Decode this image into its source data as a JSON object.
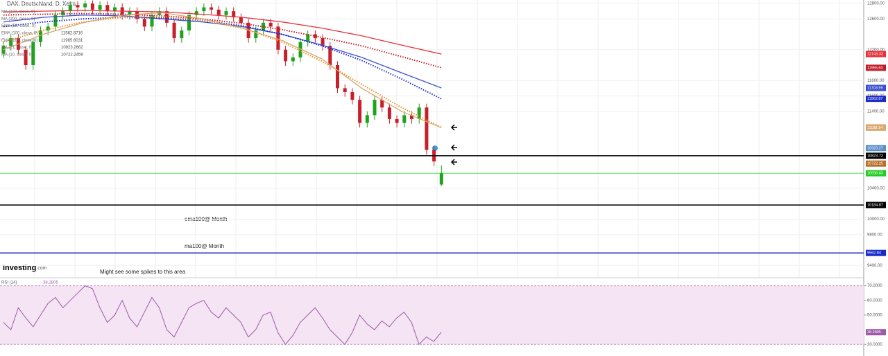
{
  "chart_data": {
    "type": "candlestick",
    "title": "DAX, Deutschland, D, Xetra",
    "ylim": [
      9250,
      12845
    ],
    "yticks": [
      {
        "value": 12800,
        "label": "12800.00"
      },
      {
        "value": 12600,
        "label": "12600.00"
      },
      {
        "value": 12200,
        "label": "12200.00"
      },
      {
        "value": 11800,
        "label": "11800.00"
      },
      {
        "value": 11600,
        "label": "11600.00"
      },
      {
        "value": 11400,
        "label": "11400.00"
      },
      {
        "value": 10400,
        "label": "10400.00"
      },
      {
        "value": 10000,
        "label": "10000.00"
      },
      {
        "value": 9800,
        "label": "9800.00"
      },
      {
        "value": 9400,
        "label": "9400.00"
      }
    ],
    "up_color": "#1fa31f",
    "down_color": "#c8202a",
    "ohlc": [
      [
        12150,
        12300,
        12090,
        12250
      ],
      [
        12250,
        12400,
        12190,
        12350
      ],
      [
        12350,
        12400,
        12140,
        12200
      ],
      [
        12200,
        12250,
        11940,
        12000
      ],
      [
        12000,
        12350,
        11940,
        12300
      ],
      [
        12300,
        12500,
        12240,
        12450
      ],
      [
        12450,
        12550,
        12390,
        12500
      ],
      [
        12500,
        12700,
        12440,
        12650
      ],
      [
        12650,
        12750,
        12590,
        12700
      ],
      [
        12700,
        12830,
        12640,
        12780
      ],
      [
        12780,
        12830,
        12690,
        12750
      ],
      [
        12750,
        12840,
        12690,
        12800
      ],
      [
        12800,
        12840,
        12660,
        12720
      ],
      [
        12720,
        12830,
        12660,
        12780
      ],
      [
        12780,
        12830,
        12640,
        12700
      ],
      [
        12700,
        12800,
        12640,
        12750
      ],
      [
        12750,
        12800,
        12590,
        12650
      ],
      [
        12650,
        12750,
        12590,
        12700
      ],
      [
        12700,
        12750,
        12540,
        12600
      ],
      [
        12600,
        12650,
        12440,
        12500
      ],
      [
        12500,
        12700,
        12440,
        12650
      ],
      [
        12650,
        12750,
        12590,
        12700
      ],
      [
        12700,
        12750,
        12490,
        12550
      ],
      [
        12550,
        12600,
        12290,
        12350
      ],
      [
        12350,
        12500,
        12290,
        12450
      ],
      [
        12450,
        12700,
        12390,
        12650
      ],
      [
        12650,
        12750,
        12590,
        12700
      ],
      [
        12700,
        12800,
        12640,
        12750
      ],
      [
        12750,
        12800,
        12660,
        12720
      ],
      [
        12720,
        12770,
        12590,
        12650
      ],
      [
        12650,
        12750,
        12590,
        12700
      ],
      [
        12700,
        12750,
        12560,
        12620
      ],
      [
        12620,
        12670,
        12490,
        12550
      ],
      [
        12550,
        12600,
        12290,
        12350
      ],
      [
        12350,
        12500,
        12290,
        12450
      ],
      [
        12450,
        12600,
        12390,
        12550
      ],
      [
        12550,
        12600,
        12440,
        12500
      ],
      [
        12500,
        12550,
        12140,
        12200
      ],
      [
        12200,
        12250,
        11990,
        12050
      ],
      [
        12050,
        12150,
        11990,
        12100
      ],
      [
        12100,
        12350,
        12040,
        12300
      ],
      [
        12300,
        12450,
        12240,
        12400
      ],
      [
        12400,
        12450,
        12290,
        12350
      ],
      [
        12350,
        12400,
        12190,
        12250
      ],
      [
        12250,
        12300,
        11940,
        12000
      ],
      [
        12000,
        12050,
        11640,
        11700
      ],
      [
        11700,
        11750,
        11590,
        11650
      ],
      [
        11650,
        11700,
        11490,
        11550
      ],
      [
        11550,
        11600,
        11190,
        11250
      ],
      [
        11250,
        11400,
        11190,
        11350
      ],
      [
        11350,
        11600,
        11290,
        11550
      ],
      [
        11550,
        11600,
        11390,
        11450
      ],
      [
        11450,
        11500,
        11240,
        11300
      ],
      [
        11300,
        11350,
        11190,
        11250
      ],
      [
        11250,
        11400,
        11190,
        11350
      ],
      [
        11350,
        11400,
        11240,
        11300
      ],
      [
        11300,
        11500,
        11240,
        11450
      ],
      [
        11450,
        11500,
        10840,
        10900
      ],
      [
        10900,
        10950,
        10690,
        10750
      ],
      [
        10450,
        10700,
        10430.03,
        10596.83
      ]
    ],
    "series": [
      {
        "name": "MA (200, close, 0)",
        "color": "#e8303a",
        "dotted": false,
        "values": [
          12690,
          12700,
          12710,
          12700,
          12690,
          12660,
          12620,
          12560,
          12480,
          12380,
          12260,
          12143.33
        ]
      },
      {
        "name": "EMA (200, close, 0)",
        "color": "#c0202a",
        "dotted": true,
        "values": [
          12650,
          12660,
          12670,
          12660,
          12640,
          12600,
          12540,
          12460,
          12360,
          12250,
          12110,
          11965.6
        ]
      },
      {
        "name": "MA (100, close, 0)",
        "color": "#3a4fd0",
        "dotted": false,
        "values": [
          12560,
          12620,
          12650,
          12640,
          12600,
          12560,
          12500,
          12400,
          12260,
          12100,
          11900,
          11703.99
        ]
      },
      {
        "name": "EMA (100, close, 0)",
        "color": "#1a2ac8",
        "dotted": true,
        "values": [
          12500,
          12560,
          12600,
          12620,
          12610,
          12580,
          12510,
          12400,
          12250,
          12060,
          11820,
          11562.87
        ]
      },
      {
        "name": "EMA (50, close, 0)",
        "color": "#f09020",
        "dotted": true,
        "values": [
          12300,
          12450,
          12560,
          12620,
          12630,
          12580,
          12480,
          12300,
          12050,
          11750,
          11450,
          11191.27
        ]
      },
      {
        "name": "MA (50, close, 0)",
        "color": "#d8a870",
        "dotted": false,
        "values": [
          12200,
          12400,
          12550,
          12650,
          12680,
          12600,
          12480,
          12320,
          12080,
          11700,
          11400,
          11188.14
        ]
      }
    ],
    "legend": [
      {
        "name": "MA (100, close, 0)"
      },
      {
        "name": "MA (200, close, 0)"
      },
      {
        "name": "EMA (50, close, 0)"
      },
      {
        "name": "EMA (100, close, 0)",
        "value": 11562.8716
      },
      {
        "name": "EMA (200, close, 0)",
        "value": 11965.6031
      },
      {
        "name": "MA (21, close, 0)",
        "value": 10923.2662
      },
      {
        "name": "MA (10, close, 0)",
        "value": 10722.2459
      }
    ],
    "price_labels": [
      {
        "value": 12143.33,
        "color": "#e8303a"
      },
      {
        "value": 11965.6,
        "label": "11965.60",
        "color": "#c0202a"
      },
      {
        "value": 11703.99,
        "color": "#3a4fd0"
      },
      {
        "value": 11562.87,
        "color": "#1a2ac8"
      },
      {
        "value": 11191.27,
        "color": "#f09020"
      },
      {
        "value": 11188.14,
        "color": "#d8a870"
      },
      {
        "value": 10923.27,
        "color": "#5b8fc8"
      },
      {
        "value": 10722.25,
        "color": "#b8702a"
      }
    ],
    "hlines": [
      {
        "value": 10823.72,
        "color": "#000000"
      },
      {
        "value": 10596.83,
        "color": "#22cc22"
      },
      {
        "value": 10184.87,
        "color": "#000000"
      },
      {
        "value": 9562.84,
        "color": "#1a2ac8"
      }
    ],
    "annotations": [
      "ema100@ Month",
      "ma100@ Month",
      "Might see some spikes to this area"
    ],
    "brand": "Investing",
    "brand_suffix": ".com",
    "rsi": {
      "name": "RSI (14)",
      "value": 38.2805,
      "color": "#9c5aa8",
      "ylim": [
        23,
        75
      ],
      "yticks": [
        {
          "value": 70,
          "label": "70.0000"
        },
        {
          "value": 60,
          "label": "60.0000"
        },
        {
          "value": 50,
          "label": "50.0000"
        },
        {
          "value": 30,
          "label": "30.0000"
        }
      ],
      "band": [
        30,
        70
      ],
      "values": [
        45,
        40,
        55,
        48,
        42,
        50,
        58,
        62,
        55,
        60,
        65,
        70,
        68,
        55,
        45,
        50,
        60,
        48,
        42,
        52,
        62,
        55,
        40,
        35,
        45,
        55,
        58,
        60,
        52,
        48,
        55,
        50,
        45,
        35,
        40,
        50,
        52,
        38,
        30,
        36,
        45,
        50,
        55,
        48,
        40,
        35,
        30,
        38,
        50,
        44,
        40,
        46,
        42,
        48,
        52,
        45,
        30,
        35,
        32,
        38.2805
      ]
    }
  }
}
